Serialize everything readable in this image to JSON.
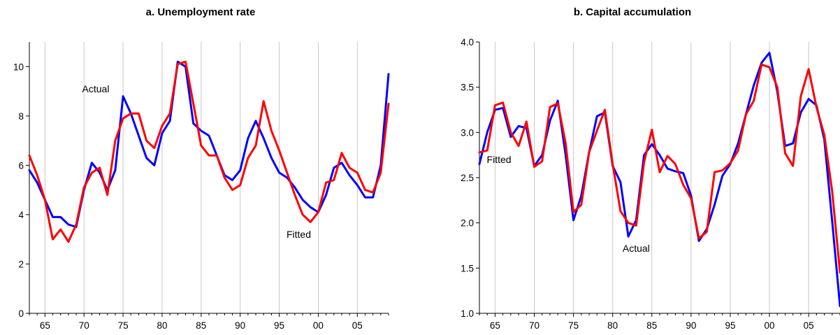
{
  "chart_data": [
    {
      "type": "line",
      "title": "a. Unemployment rate",
      "xlabel": "",
      "ylabel": "",
      "xlim": [
        1963,
        2009
      ],
      "ylim": [
        0,
        11
      ],
      "x_tick_labels": [
        "65",
        "70",
        "75",
        "80",
        "85",
        "90",
        "95",
        "00",
        "05"
      ],
      "x_tick_values": [
        1965,
        1970,
        1975,
        1980,
        1985,
        1990,
        1995,
        2000,
        2005
      ],
      "y_ticks": [
        0,
        2,
        4,
        6,
        8,
        10
      ],
      "y_tick_labels": [
        "0",
        "2",
        "4",
        "6",
        "8",
        "10"
      ],
      "grid": "vertical",
      "x": [
        1963,
        1964,
        1965,
        1966,
        1967,
        1968,
        1969,
        1970,
        1971,
        1972,
        1973,
        1974,
        1975,
        1976,
        1977,
        1978,
        1979,
        1980,
        1981,
        1982,
        1983,
        1984,
        1985,
        1986,
        1987,
        1988,
        1989,
        1990,
        1991,
        1992,
        1993,
        1994,
        1995,
        1996,
        1997,
        1998,
        1999,
        2000,
        2001,
        2002,
        2003,
        2004,
        2005,
        2006,
        2007,
        2008,
        2009
      ],
      "series": [
        {
          "name": "Actual",
          "color": "#0000ff",
          "values": [
            5.8,
            5.3,
            4.6,
            3.9,
            3.9,
            3.6,
            3.5,
            5.0,
            6.1,
            5.7,
            5.0,
            5.8,
            8.8,
            8.1,
            7.2,
            6.3,
            6.0,
            7.3,
            7.8,
            10.2,
            10.0,
            7.7,
            7.4,
            7.2,
            6.4,
            5.6,
            5.4,
            5.8,
            7.1,
            7.8,
            7.1,
            6.3,
            5.7,
            5.5,
            5.1,
            4.6,
            4.3,
            4.1,
            4.8,
            5.9,
            6.1,
            5.6,
            5.2,
            4.7,
            4.7,
            6.0,
            9.7
          ]
        },
        {
          "name": "Fitted",
          "color": "#ff0000",
          "values": [
            6.4,
            5.6,
            4.6,
            3.0,
            3.4,
            2.9,
            3.6,
            5.1,
            5.7,
            5.9,
            4.8,
            7.0,
            7.9,
            8.1,
            8.1,
            7.0,
            6.7,
            7.6,
            8.1,
            10.1,
            10.2,
            8.5,
            6.8,
            6.4,
            6.4,
            5.5,
            5.0,
            5.2,
            6.3,
            6.8,
            8.6,
            7.4,
            6.6,
            5.7,
            4.8,
            4.0,
            3.7,
            4.1,
            5.3,
            5.4,
            6.5,
            5.9,
            5.7,
            5.0,
            4.9,
            5.7,
            8.5
          ]
        }
      ],
      "annotations": [
        {
          "text": "Actual",
          "x": 1971.5,
          "y": 9.1
        },
        {
          "text": "Fitted",
          "x": 1997.5,
          "y": 3.2
        }
      ]
    },
    {
      "type": "line",
      "title": "b. Capital accumulation",
      "xlabel": "",
      "ylabel": "",
      "xlim": [
        1963,
        2009
      ],
      "ylim": [
        1.0,
        4.0
      ],
      "x_tick_labels": [
        "65",
        "70",
        "75",
        "80",
        "85",
        "90",
        "95",
        "00",
        "05"
      ],
      "x_tick_values": [
        1965,
        1970,
        1975,
        1980,
        1985,
        1990,
        1995,
        2000,
        2005
      ],
      "y_ticks": [
        1.0,
        1.5,
        2.0,
        2.5,
        3.0,
        3.5,
        4.0
      ],
      "y_tick_labels": [
        "1.0",
        "1.5",
        "2.0",
        "2.5",
        "3.0",
        "3.5",
        "4.0"
      ],
      "grid": "vertical",
      "x": [
        1963,
        1964,
        1965,
        1966,
        1967,
        1968,
        1969,
        1970,
        1971,
        1972,
        1973,
        1974,
        1975,
        1976,
        1977,
        1978,
        1979,
        1980,
        1981,
        1982,
        1983,
        1984,
        1985,
        1986,
        1987,
        1988,
        1989,
        1990,
        1991,
        1992,
        1993,
        1994,
        1995,
        1996,
        1997,
        1998,
        1999,
        2000,
        2001,
        2002,
        2003,
        2004,
        2005,
        2006,
        2007,
        2008,
        2009
      ],
      "series": [
        {
          "name": "Actual",
          "color": "#0000ff",
          "values": [
            2.65,
            3.0,
            3.25,
            3.27,
            2.95,
            3.07,
            3.05,
            2.63,
            2.75,
            3.13,
            3.35,
            2.75,
            2.03,
            2.3,
            2.78,
            3.18,
            3.22,
            2.63,
            2.45,
            1.85,
            2.03,
            2.75,
            2.87,
            2.75,
            2.6,
            2.57,
            2.55,
            2.3,
            1.8,
            1.93,
            2.2,
            2.52,
            2.65,
            2.88,
            3.2,
            3.52,
            3.77,
            3.88,
            3.45,
            2.85,
            2.88,
            3.22,
            3.37,
            3.3,
            2.92,
            2.02,
            1.08
          ]
        },
        {
          "name": "Fitted",
          "color": "#ff0000",
          "values": [
            2.78,
            2.8,
            3.3,
            3.33,
            3.0,
            2.85,
            3.12,
            2.62,
            2.68,
            3.28,
            3.32,
            2.88,
            2.12,
            2.2,
            2.78,
            3.02,
            3.25,
            2.65,
            2.13,
            2.0,
            1.97,
            2.67,
            3.03,
            2.56,
            2.74,
            2.65,
            2.42,
            2.27,
            1.83,
            1.9,
            2.56,
            2.58,
            2.66,
            2.8,
            3.2,
            3.35,
            3.75,
            3.72,
            3.5,
            2.77,
            2.63,
            3.4,
            3.7,
            3.28,
            2.97,
            2.35,
            1.45
          ]
        }
      ],
      "annotations": [
        {
          "text": "Fitted",
          "x": 1965.5,
          "y": 2.7
        },
        {
          "text": "Actual",
          "x": 1983,
          "y": 1.72
        }
      ]
    }
  ]
}
